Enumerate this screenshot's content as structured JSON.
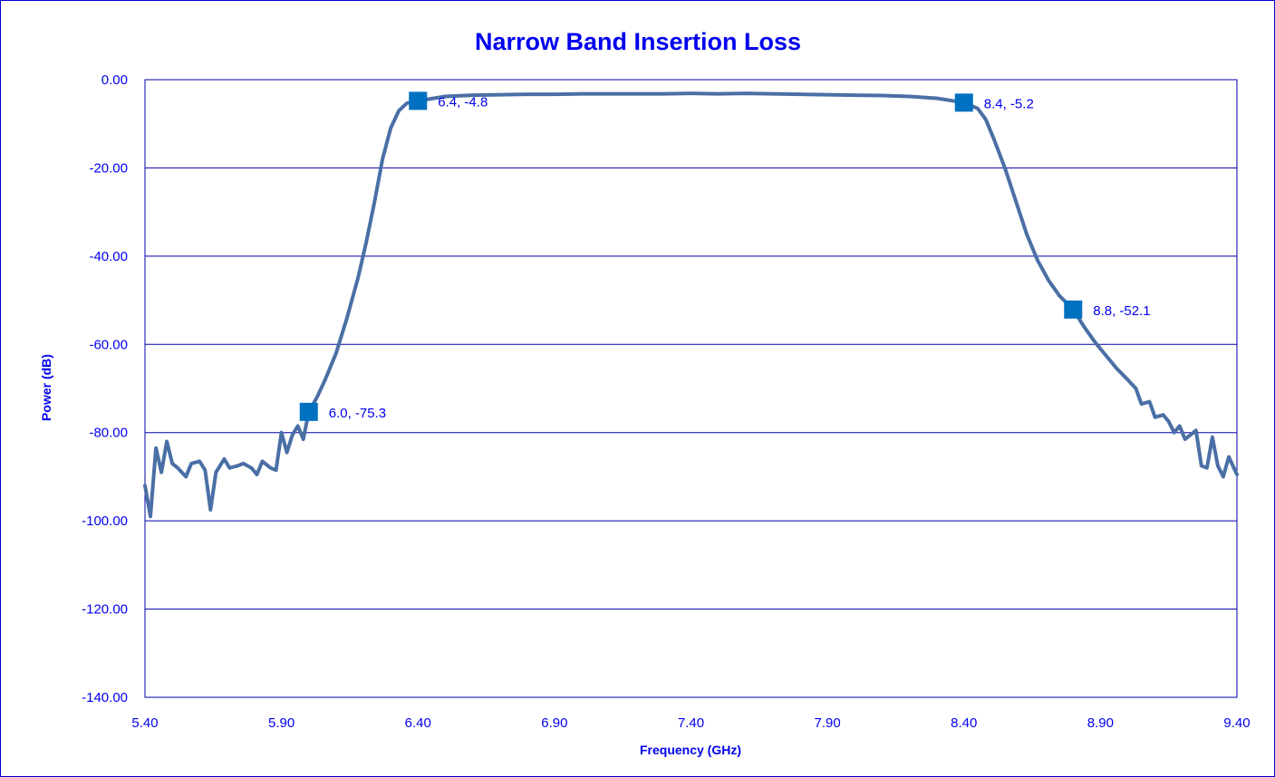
{
  "colors": {
    "text": "#0000ee",
    "grid": "#0000aa",
    "line": "#4a6fa5",
    "marker": "#0070c0",
    "frame": "#0000cc"
  },
  "chart_data": {
    "type": "line",
    "title": "Narrow Band Insertion Loss",
    "xlabel": "Frequency (GHz)",
    "ylabel": "Power (dB)",
    "xlim": [
      5.4,
      9.4
    ],
    "ylim": [
      -140,
      0
    ],
    "xticks": [
      "5.40",
      "5.90",
      "6.40",
      "6.90",
      "7.40",
      "7.90",
      "8.40",
      "8.90",
      "9.40"
    ],
    "yticks": [
      "0.00",
      "-20.00",
      "-40.00",
      "-60.00",
      "-80.00",
      "-100.00",
      "-120.00",
      "-140.00"
    ],
    "grid": "horizontal",
    "legend": "none",
    "series": [
      {
        "points": [
          [
            5.4,
            -92
          ],
          [
            5.42,
            -99
          ],
          [
            5.44,
            -83.5
          ],
          [
            5.46,
            -89
          ],
          [
            5.48,
            -82
          ],
          [
            5.5,
            -87
          ],
          [
            5.52,
            -88
          ],
          [
            5.55,
            -90
          ],
          [
            5.57,
            -87
          ],
          [
            5.6,
            -86.5
          ],
          [
            5.62,
            -88.5
          ],
          [
            5.64,
            -97.5
          ],
          [
            5.66,
            -89
          ],
          [
            5.69,
            -86
          ],
          [
            5.71,
            -88
          ],
          [
            5.74,
            -87.5
          ],
          [
            5.76,
            -87
          ],
          [
            5.79,
            -88
          ],
          [
            5.81,
            -89.5
          ],
          [
            5.83,
            -86.5
          ],
          [
            5.86,
            -88
          ],
          [
            5.88,
            -88.5
          ],
          [
            5.9,
            -80
          ],
          [
            5.92,
            -84.5
          ],
          [
            5.94,
            -80.5
          ],
          [
            5.96,
            -78.5
          ],
          [
            5.98,
            -81.5
          ],
          [
            6.0,
            -75.3
          ],
          [
            6.03,
            -72
          ],
          [
            6.06,
            -68
          ],
          [
            6.1,
            -62
          ],
          [
            6.14,
            -54
          ],
          [
            6.18,
            -45
          ],
          [
            6.21,
            -37
          ],
          [
            6.24,
            -28
          ],
          [
            6.27,
            -18
          ],
          [
            6.3,
            -11
          ],
          [
            6.33,
            -7
          ],
          [
            6.36,
            -5.3
          ],
          [
            6.4,
            -4.8
          ],
          [
            6.5,
            -3.8
          ],
          [
            6.6,
            -3.5
          ],
          [
            6.7,
            -3.4
          ],
          [
            6.8,
            -3.3
          ],
          [
            6.9,
            -3.3
          ],
          [
            7.0,
            -3.2
          ],
          [
            7.1,
            -3.2
          ],
          [
            7.2,
            -3.2
          ],
          [
            7.3,
            -3.2
          ],
          [
            7.4,
            -3.1
          ],
          [
            7.5,
            -3.2
          ],
          [
            7.6,
            -3.1
          ],
          [
            7.7,
            -3.2
          ],
          [
            7.8,
            -3.3
          ],
          [
            7.9,
            -3.4
          ],
          [
            8.0,
            -3.5
          ],
          [
            8.1,
            -3.6
          ],
          [
            8.2,
            -3.8
          ],
          [
            8.3,
            -4.2
          ],
          [
            8.4,
            -5.2
          ],
          [
            8.45,
            -6.5
          ],
          [
            8.48,
            -9
          ],
          [
            8.51,
            -13.5
          ],
          [
            8.55,
            -20
          ],
          [
            8.59,
            -27.5
          ],
          [
            8.63,
            -35
          ],
          [
            8.67,
            -41
          ],
          [
            8.71,
            -45.5
          ],
          [
            8.75,
            -49
          ],
          [
            8.8,
            -52.1
          ],
          [
            8.84,
            -56
          ],
          [
            8.88,
            -59.5
          ],
          [
            8.92,
            -62.5
          ],
          [
            8.96,
            -65.5
          ],
          [
            9.0,
            -68
          ],
          [
            9.03,
            -70
          ],
          [
            9.05,
            -73.5
          ],
          [
            9.08,
            -73
          ],
          [
            9.1,
            -76.5
          ],
          [
            9.13,
            -76
          ],
          [
            9.15,
            -77.5
          ],
          [
            9.17,
            -80
          ],
          [
            9.19,
            -78.5
          ],
          [
            9.21,
            -81.5
          ],
          [
            9.23,
            -80.5
          ],
          [
            9.25,
            -79.5
          ],
          [
            9.27,
            -87.5
          ],
          [
            9.29,
            -88
          ],
          [
            9.31,
            -81
          ],
          [
            9.33,
            -87.5
          ],
          [
            9.35,
            -90
          ],
          [
            9.37,
            -85.5
          ],
          [
            9.4,
            -89.5
          ]
        ]
      }
    ],
    "markers": [
      {
        "x": 6.0,
        "y": -75.3,
        "label": "6.0, -75.3"
      },
      {
        "x": 6.4,
        "y": -4.8,
        "label": "6.4, -4.8"
      },
      {
        "x": 8.4,
        "y": -5.2,
        "label": "8.4, -5.2"
      },
      {
        "x": 8.8,
        "y": -52.1,
        "label": "8.8, -52.1"
      }
    ]
  }
}
